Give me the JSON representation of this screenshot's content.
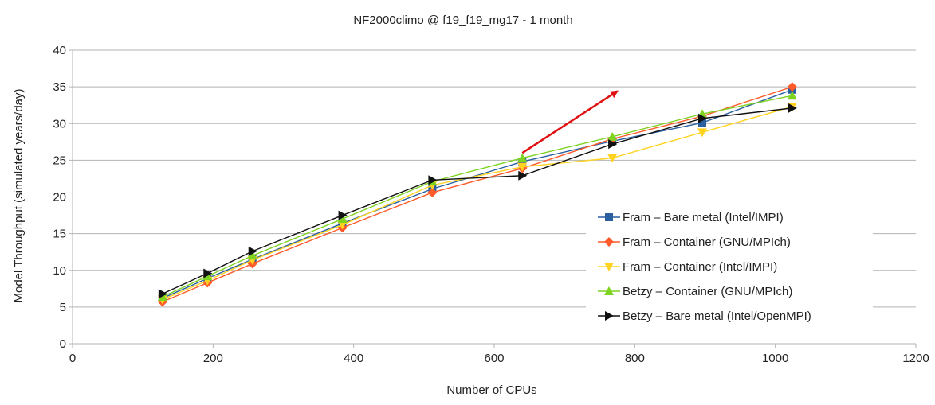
{
  "chart_data": {
    "type": "line",
    "title": "NF2000climo @ f19_f19_mg17 - 1 month",
    "xlabel": "Number of CPUs",
    "ylabel": "Model Throughput (simulated years/day)",
    "xlim": [
      0,
      1200
    ],
    "ylim": [
      0,
      40
    ],
    "xticks": [
      0,
      200,
      400,
      600,
      800,
      1000,
      1200
    ],
    "yticks": [
      0,
      5,
      10,
      15,
      20,
      25,
      30,
      35,
      40
    ],
    "grid": "horizontal",
    "legend": "lower-right",
    "series": [
      {
        "name": "Fram – Bare metal (Intel/IMPI)",
        "color": "#2a5fa0",
        "marker": "square",
        "x": [
          128,
          192,
          256,
          384,
          512,
          640,
          768,
          896,
          1024
        ],
        "y": [
          6.2,
          8.9,
          11.5,
          16.4,
          21.1,
          24.8,
          27.6,
          30.1,
          34.6
        ]
      },
      {
        "name": "Fram – Container (GNU/MPIch)",
        "color": "#ff5a2a",
        "marker": "diamond",
        "x": [
          128,
          192,
          256,
          384,
          512,
          640,
          768,
          896,
          1024
        ],
        "y": [
          5.7,
          8.3,
          10.9,
          15.8,
          20.6,
          23.9,
          27.9,
          31.0,
          35.0
        ]
      },
      {
        "name": "Fram – Container (Intel/IMPI)",
        "color": "#ffd320",
        "marker": "triangle-down",
        "x": [
          128,
          192,
          256,
          384,
          512,
          640,
          768,
          896,
          1024
        ],
        "y": [
          6.0,
          8.6,
          11.4,
          16.2,
          21.6,
          24.1,
          25.3,
          28.8,
          32.3
        ]
      },
      {
        "name": "Betzy – Container (GNU/MPIch)",
        "color": "#7ed321",
        "marker": "triangle-up",
        "x": [
          128,
          192,
          256,
          384,
          512,
          640,
          768,
          896,
          1024
        ],
        "y": [
          6.4,
          9.2,
          12.0,
          17.0,
          22.1,
          25.3,
          28.2,
          31.3,
          33.8
        ]
      },
      {
        "name": "Betzy – Bare metal (Intel/OpenMPI)",
        "color": "#111111",
        "marker": "triangle-right",
        "x": [
          128,
          192,
          256,
          384,
          512,
          640,
          768,
          896,
          1024
        ],
        "y": [
          6.8,
          9.6,
          12.6,
          17.5,
          22.3,
          22.9,
          27.2,
          30.7,
          32.1
        ]
      }
    ],
    "annotation_arrow": {
      "color": "#e01010",
      "from": [
        640,
        26.0
      ],
      "to": [
        775,
        34.4
      ]
    }
  }
}
